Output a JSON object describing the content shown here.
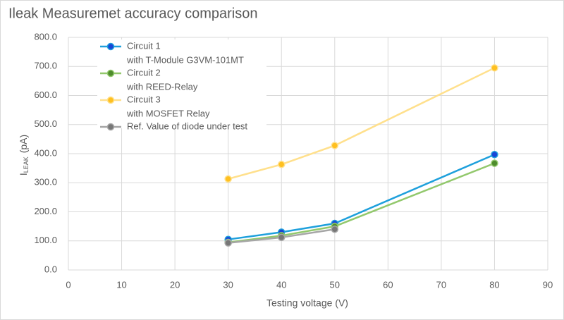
{
  "chart_data": {
    "type": "line",
    "title": "Ileak Measuremet accuracy comparison",
    "x_label": "Testing voltage (V)",
    "y_label": {
      "main": "I",
      "sub": "LEAK",
      "unit": "(pA)"
    },
    "xlim": [
      0,
      90
    ],
    "xticks": [
      0,
      10,
      20,
      30,
      40,
      50,
      60,
      70,
      80,
      90
    ],
    "ylim": [
      0,
      800
    ],
    "yticks": [
      {
        "value": 0,
        "label": "0.0"
      },
      {
        "value": 100,
        "label": "100.0"
      },
      {
        "value": 200,
        "label": "200.0"
      },
      {
        "value": 300,
        "label": "300.0"
      },
      {
        "value": 400,
        "label": "400.0"
      },
      {
        "value": 500,
        "label": "500.0"
      },
      {
        "value": 600,
        "label": "600.0"
      },
      {
        "value": 700,
        "label": "700.0"
      },
      {
        "value": 800,
        "label": "800.0"
      }
    ],
    "grid": true,
    "legend": "upper-left",
    "series": [
      {
        "name": "Circuit 1",
        "note": "with T-Module G3VM-101MT",
        "color": "#1ea0dc",
        "marker_color": "#1846d6",
        "x": [
          30,
          40,
          50,
          80
        ],
        "values": [
          105,
          130,
          160,
          397
        ]
      },
      {
        "name": "Circuit 2",
        "note": "with REED-Relay",
        "color": "#92c86c",
        "marker_color": "#4e8c2c",
        "x": [
          30,
          40,
          50,
          80
        ],
        "values": [
          95,
          118,
          150,
          367
        ]
      },
      {
        "name": "Circuit 3",
        "note": "with MOSFET Relay",
        "color": "#ffe08c",
        "marker_color": "#ffc020",
        "x": [
          30,
          40,
          50,
          80
        ],
        "values": [
          313,
          363,
          428,
          695
        ]
      },
      {
        "name": "Ref. Value of diode under test",
        "color": "#a6a6a6",
        "marker_color": "#777777",
        "x": [
          30,
          40,
          50
        ],
        "values": [
          93,
          112,
          140
        ]
      }
    ]
  }
}
